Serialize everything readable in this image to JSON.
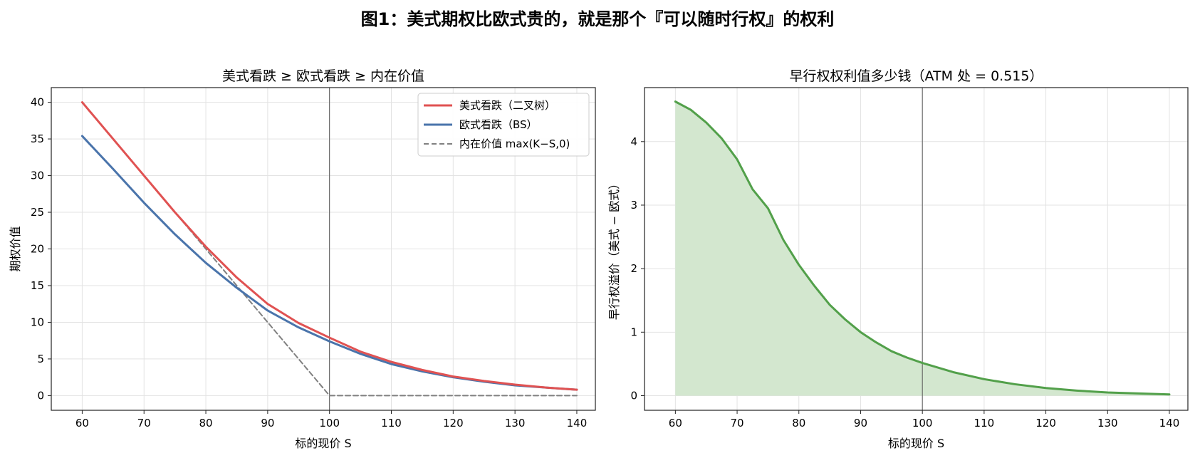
{
  "figure_title": "图1：美式期权比欧式贵的，就是那个『可以随时行权』的权利",
  "colors": {
    "american": "#e05252",
    "european": "#4a74ab",
    "intrinsic": "#808080",
    "premium": "#52a04a",
    "premium_fill": "#d3e7cf",
    "atm_line": "#555555",
    "grid": "#e3e3e3"
  },
  "chart_data": [
    {
      "type": "line",
      "title": "美式看跌 ≥ 欧式看跌 ≥ 内在价值",
      "xlabel": "标的现价 S",
      "ylabel": "期权价值",
      "xlim": [
        55,
        143
      ],
      "ylim": [
        -2,
        42
      ],
      "xticks": [
        60,
        70,
        80,
        90,
        100,
        110,
        120,
        130,
        140
      ],
      "yticks": [
        0,
        5,
        10,
        15,
        20,
        25,
        30,
        35,
        40
      ],
      "vline_x": 100,
      "grid": true,
      "legend_position": "top-right",
      "x": [
        60,
        65,
        70,
        75,
        80,
        85,
        90,
        95,
        100,
        105,
        110,
        115,
        120,
        125,
        130,
        135,
        140
      ],
      "series": [
        {
          "name": "美式看跌（二叉树）",
          "style": "solid",
          "color_key": "american",
          "values": [
            40.0,
            35.0,
            30.0,
            25.0,
            20.3,
            16.1,
            12.5,
            9.9,
            7.9,
            6.0,
            4.6,
            3.5,
            2.6,
            2.0,
            1.5,
            1.1,
            0.8
          ]
        },
        {
          "name": "欧式看跌（BS）",
          "style": "solid",
          "color_key": "european",
          "values": [
            35.4,
            30.9,
            26.3,
            22.0,
            18.1,
            14.7,
            11.6,
            9.3,
            7.4,
            5.7,
            4.3,
            3.3,
            2.5,
            1.9,
            1.4,
            1.1,
            0.8
          ]
        },
        {
          "name": "内在价值 max(K−S,0)",
          "style": "dashed",
          "color_key": "intrinsic",
          "values": [
            40,
            35,
            30,
            25,
            20,
            15,
            10,
            5,
            0,
            0,
            0,
            0,
            0,
            0,
            0,
            0,
            0
          ]
        }
      ]
    },
    {
      "type": "area",
      "title": "早行权权利值多少钱（ATM 处 = 0.515）",
      "xlabel": "标的现价 S",
      "ylabel": "早行权溢价（美式 − 欧式）",
      "xlim": [
        55,
        143
      ],
      "ylim": [
        -0.23,
        4.85
      ],
      "xticks": [
        60,
        70,
        80,
        90,
        100,
        110,
        120,
        130,
        140
      ],
      "yticks": [
        0,
        1,
        2,
        3,
        4
      ],
      "vline_x": 100,
      "grid": true,
      "x": [
        60,
        62.5,
        65,
        67.5,
        70,
        72.5,
        75,
        77.5,
        80,
        82.5,
        85,
        87.5,
        90,
        92.5,
        95,
        97.5,
        100,
        105,
        110,
        115,
        120,
        125,
        130,
        135,
        140
      ],
      "series": [
        {
          "name": "",
          "color_key": "premium",
          "values": [
            4.63,
            4.5,
            4.3,
            4.05,
            3.72,
            3.25,
            2.95,
            2.45,
            2.06,
            1.73,
            1.43,
            1.2,
            1.0,
            0.84,
            0.7,
            0.6,
            0.515,
            0.37,
            0.26,
            0.18,
            0.12,
            0.08,
            0.05,
            0.035,
            0.02
          ]
        }
      ]
    }
  ]
}
